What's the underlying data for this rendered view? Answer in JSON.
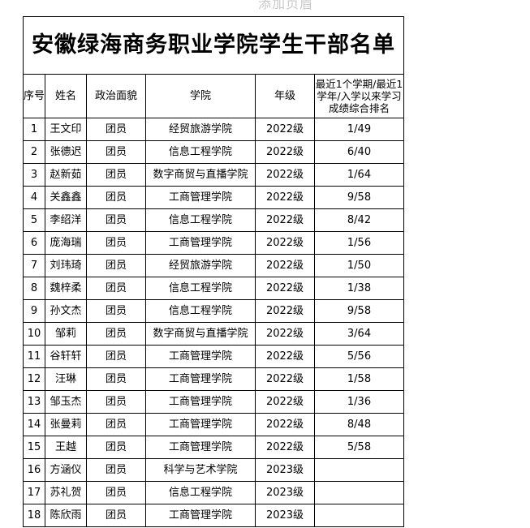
{
  "page_hint": "添加页眉",
  "title": "安徽绿海商务职业学院学生干部名单",
  "columns": [
    "序号",
    "姓名",
    "政治面貌",
    "学院",
    "年级",
    "最近1个学期/最近1学年/入学以来学习成绩综合排名"
  ],
  "rows": [
    [
      "1",
      "王文印",
      "团员",
      "经贸旅游学院",
      "2022级",
      "1/49"
    ],
    [
      "2",
      "张德迟",
      "团员",
      "信息工程学院",
      "2022级",
      "6/40"
    ],
    [
      "3",
      "赵新茹",
      "团员",
      "数字商贸与直播学院",
      "2022级",
      "1/64"
    ],
    [
      "4",
      "关鑫鑫",
      "团员",
      "工商管理学院",
      "2022级",
      "9/58"
    ],
    [
      "5",
      "李绍洋",
      "团员",
      "信息工程学院",
      "2022级",
      "8/42"
    ],
    [
      "6",
      "庞海瑞",
      "团员",
      "工商管理学院",
      "2022级",
      "1/56"
    ],
    [
      "7",
      "刘玮琦",
      "团员",
      "经贸旅游学院",
      "2022级",
      "1/50"
    ],
    [
      "8",
      "魏梓柔",
      "团员",
      "信息工程学院",
      "2022级",
      "1/38"
    ],
    [
      "9",
      "孙文杰",
      "团员",
      "信息工程学院",
      "2022级",
      "9/58"
    ],
    [
      "10",
      "邹莉",
      "团员",
      "数字商贸与直播学院",
      "2022级",
      "3/64"
    ],
    [
      "11",
      "谷轩轩",
      "团员",
      "工商管理学院",
      "2022级",
      "5/56"
    ],
    [
      "12",
      "汪琳",
      "团员",
      "工商管理学院",
      "2022级",
      "1/58"
    ],
    [
      "13",
      "邹玉杰",
      "团员",
      "工商管理学院",
      "2022级",
      "1/36"
    ],
    [
      "14",
      "张曼莉",
      "团员",
      "工商管理学院",
      "2022级",
      "8/48"
    ],
    [
      "15",
      "王越",
      "团员",
      "工商管理学院",
      "2022级",
      "5/58"
    ],
    [
      "16",
      "方涵仪",
      "团员",
      "科学与艺术学院",
      "2023级",
      ""
    ],
    [
      "17",
      "苏礼贺",
      "团员",
      "信息工程学院",
      "2023级",
      ""
    ],
    [
      "18",
      "陈欣雨",
      "团员",
      "工商管理学院",
      "2023级",
      ""
    ]
  ]
}
